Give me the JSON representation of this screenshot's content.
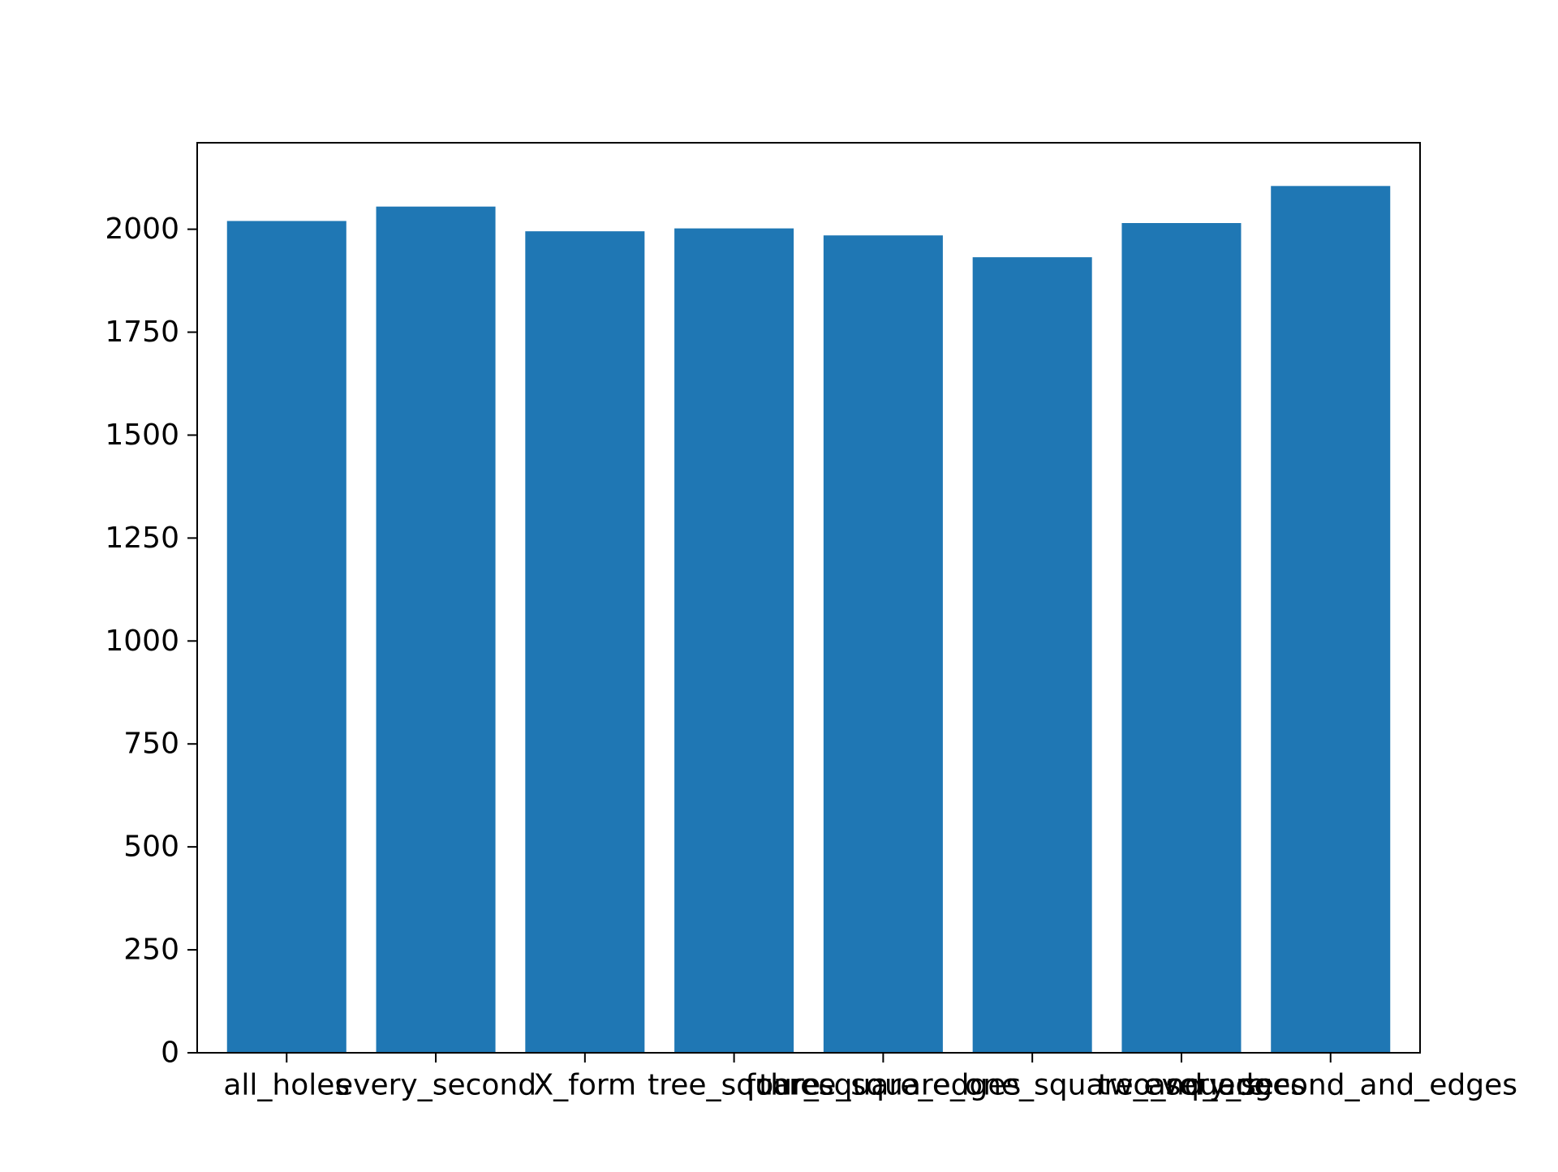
{
  "chart_data": {
    "type": "bar",
    "title": "",
    "xlabel": "",
    "ylabel": "",
    "categories": [
      "all_holes",
      "every_second",
      "X_form",
      "tree_square",
      "four_square_edges",
      "three_square_one_square_and_edges",
      "two_square",
      "every_second_and_edges"
    ],
    "values": [
      2020,
      2055,
      1995,
      2002,
      1985,
      1932,
      2015,
      2105
    ],
    "ylim": [
      0,
      2210
    ],
    "yticks": [
      0,
      250,
      500,
      750,
      1000,
      1250,
      1500,
      1750,
      2000
    ],
    "ytick_labels": [
      "0",
      "250",
      "500",
      "750",
      "1000",
      "1250",
      "1500",
      "1750",
      "2000"
    ],
    "grid": false,
    "legend": "none",
    "colors": {
      "bar": "#1f77b4",
      "axis": "#000000"
    }
  }
}
